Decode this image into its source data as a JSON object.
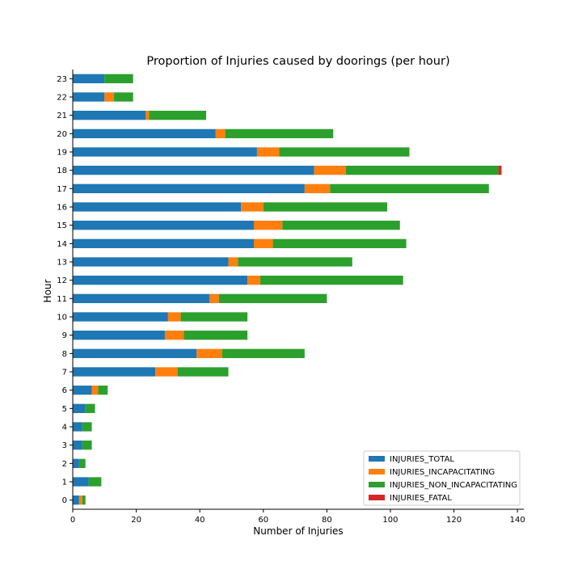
{
  "chart_data": {
    "type": "bar",
    "orientation": "horizontal",
    "stacked": true,
    "title": "Proportion of Injuries caused by doorings (per hour)",
    "xlabel": "Number of Injuries",
    "ylabel": "Hour",
    "xlim": [
      0,
      142
    ],
    "xticks": [
      0,
      20,
      40,
      60,
      80,
      100,
      120,
      140
    ],
    "categories": [
      "0",
      "1",
      "2",
      "3",
      "4",
      "5",
      "6",
      "7",
      "8",
      "9",
      "10",
      "11",
      "12",
      "13",
      "14",
      "15",
      "16",
      "17",
      "18",
      "19",
      "20",
      "21",
      "22",
      "23"
    ],
    "series": [
      {
        "name": "INJURIES_TOTAL",
        "color": "#1f77b4",
        "values": [
          2,
          5,
          2,
          3,
          3,
          4,
          6,
          26,
          39,
          29,
          30,
          43,
          55,
          49,
          57,
          57,
          53,
          73,
          76,
          58,
          45,
          23,
          10,
          10
        ]
      },
      {
        "name": "INJURIES_INCAPACITATING",
        "color": "#ff7f0e",
        "values": [
          1,
          0,
          0,
          0,
          0,
          0,
          2,
          7,
          8,
          6,
          4,
          3,
          4,
          3,
          6,
          9,
          7,
          8,
          10,
          7,
          3,
          1,
          3,
          0
        ]
      },
      {
        "name": "INJURIES_NON_INCAPACITATING",
        "color": "#2ca02c",
        "values": [
          1,
          4,
          2,
          3,
          3,
          3,
          3,
          16,
          26,
          20,
          21,
          34,
          45,
          36,
          42,
          37,
          39,
          50,
          48,
          41,
          34,
          18,
          6,
          9
        ]
      },
      {
        "name": "INJURIES_FATAL",
        "color": "#d62728",
        "values": [
          0,
          0,
          0,
          0,
          0,
          0,
          0,
          0,
          0,
          0,
          0,
          0,
          0,
          0,
          0,
          0,
          0,
          0,
          1,
          0,
          0,
          0,
          0,
          0
        ]
      }
    ],
    "grid": false,
    "legend_position": "lower right"
  }
}
